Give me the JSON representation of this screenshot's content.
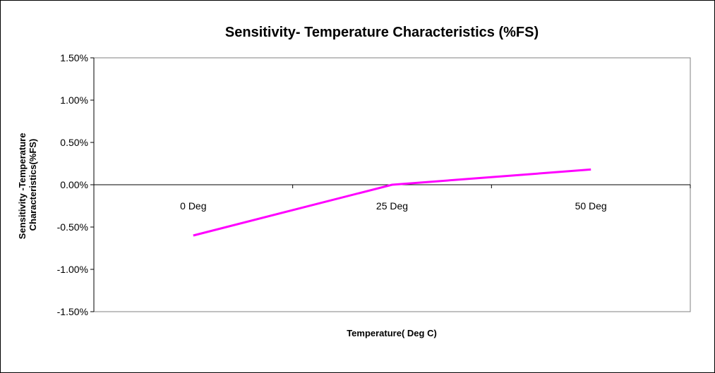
{
  "chart_data": {
    "type": "line",
    "title": "Sensitivity- Temperature Characteristics (%FS)",
    "xlabel": "Temperature( Deg C)",
    "ylabel_lines": [
      "Sensitivity -Temperature",
      "Characteristics(%FS)"
    ],
    "categories": [
      "0 Deg",
      "25 Deg",
      "50 Deg"
    ],
    "series": [
      {
        "values": [
          -0.006,
          0.0,
          0.0018
        ],
        "color": "#FF00FF"
      }
    ],
    "ylim": [
      -0.015,
      0.015
    ],
    "yticks": [
      0.015,
      0.01,
      0.005,
      0.0,
      -0.005,
      -0.01,
      -0.015
    ],
    "ytick_labels": [
      "1.50%",
      "1.00%",
      "0.50%",
      "0.00%",
      "-0.50%",
      "-1.00%",
      "-1.50%"
    ],
    "grid": false,
    "legend": "none"
  }
}
